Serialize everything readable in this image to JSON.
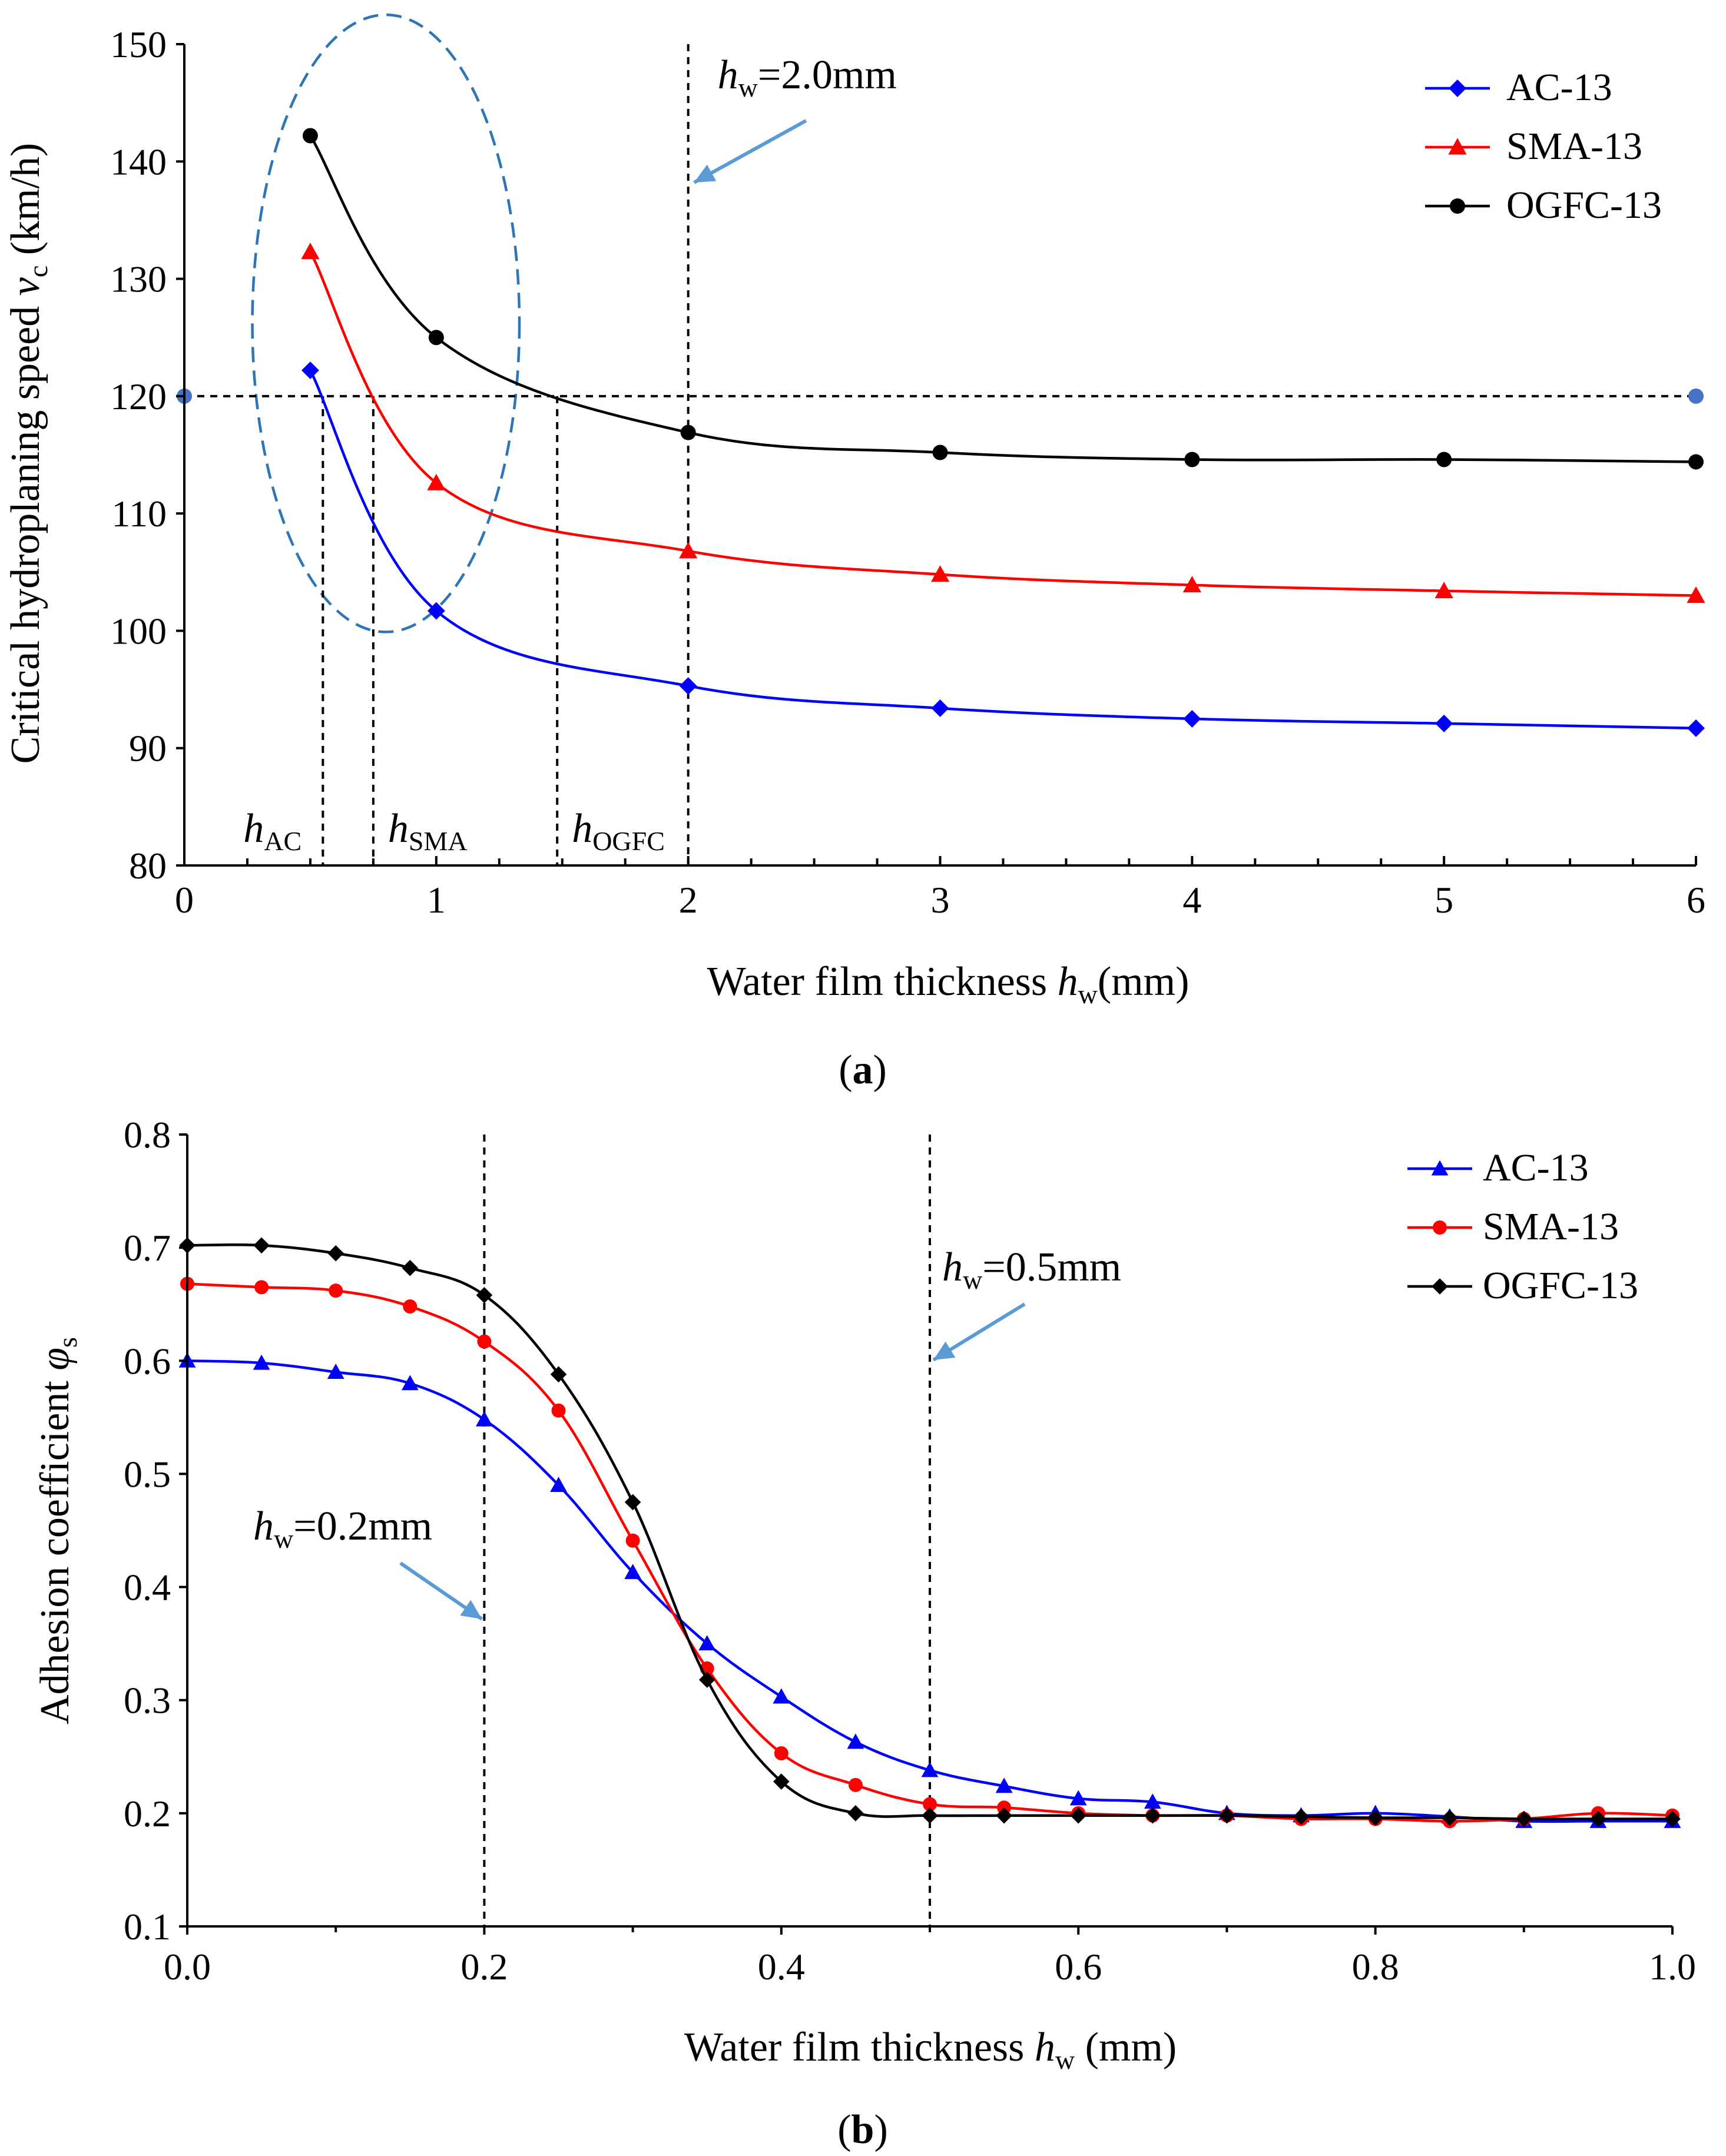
{
  "chart_data": [
    {
      "id": "a",
      "type": "line",
      "caption_letter": "a",
      "title": "",
      "xlabel_prefix": "Water film thickness ",
      "xlabel_var": "h",
      "xlabel_sub": "w",
      "xlabel_unit": "(mm)",
      "ylabel_prefix": "Critical hydroplaning speed ",
      "ylabel_var": "v",
      "ylabel_sub": "c",
      "ylabel_unit": " (km/h)",
      "xlim": [
        0,
        6
      ],
      "ylim": [
        80,
        150
      ],
      "xticks": [
        0,
        1,
        2,
        3,
        4,
        5,
        6
      ],
      "xminor_ticks": [
        0.25,
        0.5,
        0.75,
        1.25,
        1.5,
        1.75,
        2.25,
        2.5,
        2.75,
        3.25,
        3.5,
        3.75,
        4.25,
        4.5,
        4.75,
        5.25,
        5.5,
        5.75
      ],
      "yticks": [
        80,
        90,
        100,
        110,
        120,
        130,
        140,
        150
      ],
      "legend_position": "top-right",
      "series": [
        {
          "name": "AC-13",
          "color": "#0000ff",
          "marker": "diamond",
          "x": [
            0.5,
            1,
            2,
            3,
            4,
            5,
            6
          ],
          "y": [
            122.2,
            101.7,
            95.3,
            93.4,
            92.5,
            92.1,
            91.7
          ]
        },
        {
          "name": "SMA-13",
          "color": "#ff0000",
          "marker": "triangle",
          "x": [
            0.5,
            1,
            2,
            3,
            4,
            5,
            6
          ],
          "y": [
            132.3,
            112.6,
            106.8,
            104.8,
            103.9,
            103.4,
            103.0
          ]
        },
        {
          "name": "OGFC-13",
          "color": "#000000",
          "marker": "circle",
          "x": [
            0.5,
            1,
            2,
            3,
            4,
            5,
            6
          ],
          "y": [
            142.2,
            125.0,
            116.9,
            115.2,
            114.6,
            114.6,
            114.4
          ]
        }
      ],
      "reference_line": {
        "y": 120,
        "color": "#4472c4",
        "endpoints_x": [
          0,
          6
        ]
      },
      "vertical_line": {
        "x": 2.0,
        "label_var": "h",
        "label_sub": "w",
        "label_text": "=2.0mm"
      },
      "intersections": [
        {
          "x": 0.55,
          "label_var": "h",
          "label_sub": "AC"
        },
        {
          "x": 0.75,
          "label_var": "h",
          "label_sub": "SMA"
        },
        {
          "x": 1.48,
          "label_var": "h",
          "label_sub": "OGFC"
        }
      ],
      "ellipse": {
        "cx": 0.8,
        "cy": 126.2,
        "rx_units": 0.53,
        "ry_units": 26.3,
        "color": "#2e75b6"
      }
    },
    {
      "id": "b",
      "type": "line",
      "caption_letter": "b",
      "title": "",
      "xlabel_prefix": "Water film thickness ",
      "xlabel_var": "h",
      "xlabel_sub": "w",
      "xlabel_unit": " (mm)",
      "ylabel_prefix": "Adhesion coefficient ",
      "ylabel_var": "φ",
      "ylabel_sub": "s",
      "ylabel_unit": "",
      "xlim": [
        0,
        1
      ],
      "ylim": [
        0.1,
        0.8
      ],
      "xticks": [
        0.0,
        0.2,
        0.4,
        0.6,
        0.8,
        1.0
      ],
      "xtick_labels": [
        "0.0",
        "0.2",
        "0.4",
        "0.6",
        "0.8",
        "1.0"
      ],
      "yticks": [
        0.1,
        0.2,
        0.3,
        0.4,
        0.5,
        0.6,
        0.7,
        0.8
      ],
      "ytick_labels": [
        "0.1",
        "0.2",
        "0.3",
        "0.4",
        "0.5",
        "0.6",
        "0.7",
        "0.8"
      ],
      "legend_position": "top-right",
      "series": [
        {
          "name": "AC-13",
          "color": "#0000ff",
          "marker": "triangle",
          "x": [
            0,
            0.05,
            0.1,
            0.15,
            0.2,
            0.25,
            0.3,
            0.35,
            0.4,
            0.45,
            0.5,
            0.55,
            0.6,
            0.65,
            0.7,
            0.75,
            0.8,
            0.85,
            0.9,
            0.95,
            1.0
          ],
          "y": [
            0.6,
            0.598,
            0.59,
            0.58,
            0.548,
            0.49,
            0.413,
            0.35,
            0.303,
            0.263,
            0.238,
            0.224,
            0.213,
            0.21,
            0.2,
            0.198,
            0.2,
            0.197,
            0.193,
            0.193,
            0.193
          ]
        },
        {
          "name": "SMA-13",
          "color": "#ff0000",
          "marker": "circle",
          "x": [
            0,
            0.05,
            0.1,
            0.15,
            0.2,
            0.25,
            0.3,
            0.35,
            0.4,
            0.45,
            0.5,
            0.55,
            0.6,
            0.65,
            0.7,
            0.75,
            0.8,
            0.85,
            0.9,
            0.95,
            1.0
          ],
          "y": [
            0.668,
            0.665,
            0.662,
            0.648,
            0.617,
            0.556,
            0.441,
            0.328,
            0.253,
            0.225,
            0.208,
            0.205,
            0.2,
            0.198,
            0.198,
            0.195,
            0.195,
            0.193,
            0.195,
            0.2,
            0.198
          ]
        },
        {
          "name": "OGFC-13",
          "color": "#000000",
          "marker": "diamond",
          "x": [
            0,
            0.05,
            0.1,
            0.15,
            0.2,
            0.25,
            0.3,
            0.35,
            0.4,
            0.45,
            0.5,
            0.55,
            0.6,
            0.65,
            0.7,
            0.75,
            0.8,
            0.85,
            0.9,
            0.95,
            1.0
          ],
          "y": [
            0.702,
            0.702,
            0.695,
            0.682,
            0.658,
            0.588,
            0.475,
            0.318,
            0.228,
            0.2,
            0.198,
            0.198,
            0.198,
            0.198,
            0.198,
            0.197,
            0.196,
            0.196,
            0.195,
            0.195,
            0.195
          ]
        }
      ],
      "vertical_lines": [
        {
          "x": 0.2,
          "label_var": "h",
          "label_sub": "w",
          "label_text": "=0.2mm"
        },
        {
          "x": 0.5,
          "label_var": "h",
          "label_sub": "w",
          "label_text": "=0.5mm"
        }
      ]
    }
  ]
}
